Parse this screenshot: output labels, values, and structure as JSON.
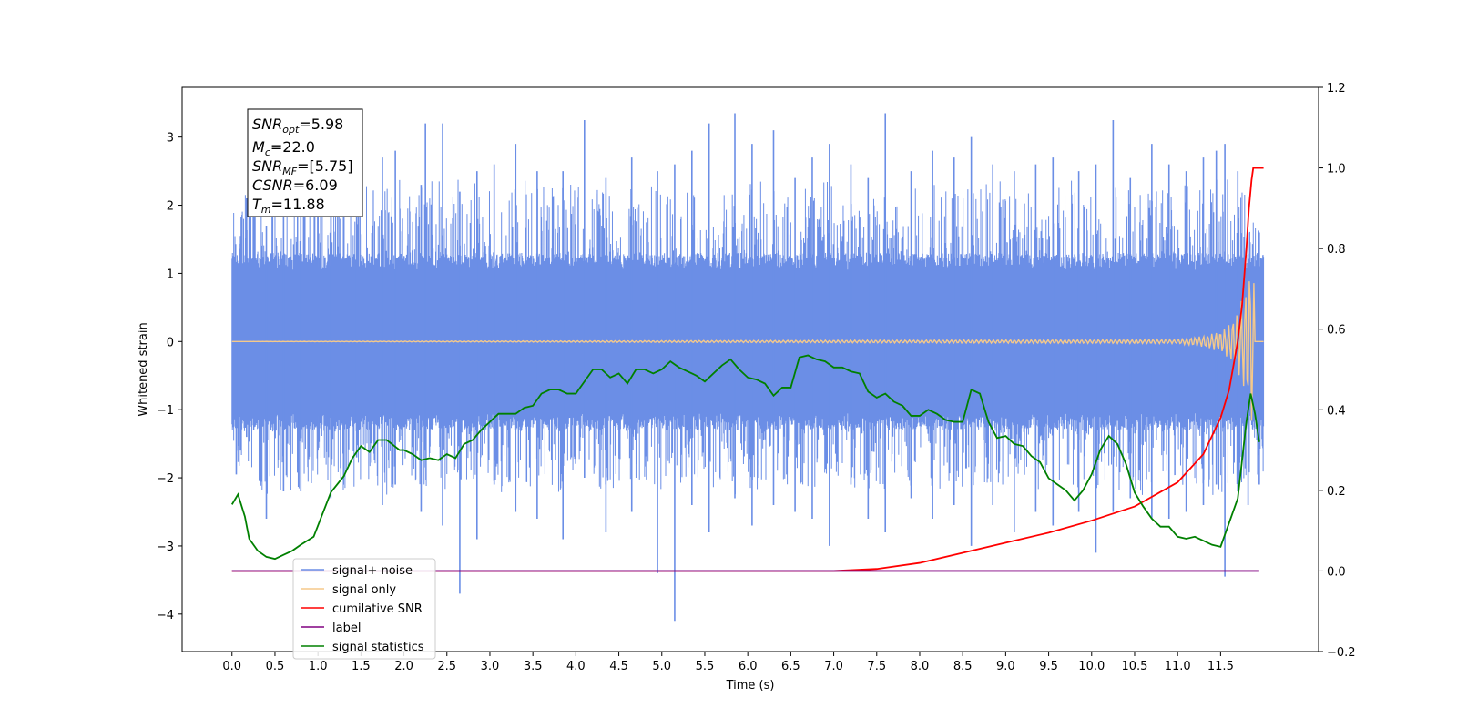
{
  "chart_data": {
    "type": "line",
    "xlabel": "Time (s)",
    "ylabel": "Whitened strain",
    "xlim": [
      -0.58,
      12.64
    ],
    "ylim": [
      -4.55,
      3.73
    ],
    "y2lim": [
      -0.2,
      1.2
    ],
    "x_ticks": [
      "0.0",
      "0.5",
      "1.0",
      "1.5",
      "2.0",
      "2.5",
      "3.0",
      "3.5",
      "4.0",
      "4.5",
      "5.0",
      "5.5",
      "6.0",
      "6.5",
      "7.0",
      "7.5",
      "8.0",
      "8.5",
      "9.0",
      "9.5",
      "10.0",
      "10.5",
      "11.0",
      "11.5"
    ],
    "y_ticks": [
      "3",
      "2",
      "1",
      "0",
      "−1",
      "−2",
      "−3",
      "−4"
    ],
    "y2_ticks": [
      "1.2",
      "1.0",
      "0.8",
      "0.6",
      "0.4",
      "0.2",
      "0.0",
      "−0.2"
    ],
    "grid": false,
    "legend_position": "lower-left",
    "annotation": {
      "snr_opt": "=5.98",
      "mc": "=22.0",
      "snr_mf": "=[5.75]",
      "csnr": "=6.09",
      "tm": "=11.88"
    },
    "noise_spikes": [
      [
        0.05,
        1.1,
        -1.95
      ],
      [
        0.1,
        1.55,
        -1.6
      ],
      [
        0.17,
        2.1,
        -1.4
      ],
      [
        0.2,
        2.7,
        -1.2
      ],
      [
        0.4,
        1.7,
        -2.6
      ],
      [
        0.6,
        2.0,
        -2.2
      ],
      [
        0.8,
        1.9,
        -2.2
      ],
      [
        1.0,
        2.4,
        -1.6
      ],
      [
        1.15,
        2.3,
        -2.3
      ],
      [
        1.45,
        2.6,
        -1.7
      ],
      [
        1.75,
        2.7,
        -2.4
      ],
      [
        1.9,
        2.8,
        -2.1
      ],
      [
        2.2,
        2.3,
        -2.5
      ],
      [
        2.25,
        3.2,
        -1.6
      ],
      [
        2.45,
        3.2,
        -2.7
      ],
      [
        2.65,
        2.2,
        -3.7
      ],
      [
        2.85,
        2.5,
        -2.9
      ],
      [
        3.05,
        2.6,
        -2.1
      ],
      [
        3.3,
        2.9,
        -2.5
      ],
      [
        3.55,
        2.5,
        -2.6
      ],
      [
        3.85,
        2.5,
        -2.9
      ],
      [
        4.1,
        3.25,
        -2.0
      ],
      [
        4.35,
        2.4,
        -2.8
      ],
      [
        4.65,
        2.7,
        -2.5
      ],
      [
        4.95,
        2.5,
        -3.4
      ],
      [
        5.15,
        2.6,
        -4.1
      ],
      [
        5.35,
        2.8,
        -2.4
      ],
      [
        5.55,
        3.2,
        -2.8
      ],
      [
        5.85,
        3.35,
        -2.3
      ],
      [
        6.05,
        2.9,
        -2.7
      ],
      [
        6.3,
        3.1,
        -2.4
      ],
      [
        6.55,
        2.4,
        -2.5
      ],
      [
        6.75,
        2.7,
        -2.6
      ],
      [
        6.95,
        2.9,
        -3.0
      ],
      [
        7.2,
        2.6,
        -2.1
      ],
      [
        7.4,
        2.4,
        -2.6
      ],
      [
        7.6,
        3.35,
        -2.8
      ],
      [
        7.9,
        2.5,
        -2.3
      ],
      [
        8.15,
        2.8,
        -2.6
      ],
      [
        8.4,
        2.7,
        -2.4
      ],
      [
        8.6,
        3.0,
        -3.0
      ],
      [
        8.85,
        2.6,
        -2.4
      ],
      [
        9.1,
        2.5,
        -2.8
      ],
      [
        9.35,
        2.6,
        -2.5
      ],
      [
        9.55,
        2.7,
        -2.7
      ],
      [
        9.85,
        2.5,
        -2.5
      ],
      [
        10.05,
        2.6,
        -3.1
      ],
      [
        10.25,
        3.25,
        -2.5
      ],
      [
        10.45,
        2.4,
        -2.3
      ],
      [
        10.7,
        2.9,
        -2.6
      ],
      [
        10.9,
        2.6,
        -2.6
      ],
      [
        11.1,
        2.5,
        -2.5
      ],
      [
        11.3,
        2.7,
        -2.4
      ],
      [
        11.45,
        2.8,
        -2.1
      ],
      [
        11.55,
        2.9,
        -3.45
      ],
      [
        11.7,
        2.5,
        -2.2
      ],
      [
        11.82,
        1.6,
        -2.4
      ],
      [
        11.95,
        1.6,
        -2.1
      ]
    ],
    "series": [
      {
        "name": "signal+ noise",
        "color": "#6b8ee6",
        "axis": "left",
        "x": [
          0.0,
          12.0
        ],
        "y": [
          0.0,
          0.0
        ]
      },
      {
        "name": "signal only",
        "color": "#f5c98a",
        "axis": "left",
        "x": [
          0.0,
          11.0,
          11.3,
          11.5,
          11.6,
          11.7,
          11.8,
          11.85,
          11.88,
          11.9,
          12.0
        ],
        "y": [
          0.0,
          0.03,
          0.08,
          0.15,
          0.25,
          0.45,
          0.8,
          1.2,
          1.3,
          0.0,
          0.0
        ]
      },
      {
        "name": "cumilative SNR",
        "color": "#ff0000",
        "axis": "right",
        "x": [
          0.0,
          7.0,
          7.5,
          8.0,
          8.5,
          9.0,
          9.5,
          10.0,
          10.5,
          11.0,
          11.3,
          11.5,
          11.6,
          11.7,
          11.75,
          11.8,
          11.83,
          11.86,
          11.88,
          12.0
        ],
        "y": [
          0.0,
          0.0,
          0.005,
          0.02,
          0.045,
          0.07,
          0.095,
          0.125,
          0.16,
          0.22,
          0.29,
          0.38,
          0.45,
          0.57,
          0.66,
          0.8,
          0.9,
          0.97,
          1.0,
          1.0
        ]
      },
      {
        "name": "label",
        "color": "#800080",
        "axis": "right",
        "x": [
          0.0,
          11.95
        ],
        "y": [
          0.0,
          0.0
        ]
      },
      {
        "name": "signal statistics",
        "color": "#008000",
        "axis": "right",
        "x": [
          0.0,
          0.07,
          0.15,
          0.2,
          0.3,
          0.4,
          0.5,
          0.6,
          0.7,
          0.8,
          0.95,
          1.05,
          1.15,
          1.3,
          1.4,
          1.5,
          1.6,
          1.7,
          1.8,
          1.95,
          2.0,
          2.1,
          2.2,
          2.3,
          2.4,
          2.5,
          2.6,
          2.7,
          2.8,
          2.9,
          3.0,
          3.1,
          3.2,
          3.3,
          3.4,
          3.5,
          3.6,
          3.7,
          3.8,
          3.9,
          4.0,
          4.1,
          4.2,
          4.3,
          4.4,
          4.5,
          4.6,
          4.7,
          4.8,
          4.9,
          5.0,
          5.1,
          5.2,
          5.3,
          5.4,
          5.5,
          5.6,
          5.7,
          5.8,
          5.9,
          6.0,
          6.1,
          6.2,
          6.3,
          6.4,
          6.5,
          6.6,
          6.7,
          6.8,
          6.9,
          7.0,
          7.1,
          7.2,
          7.3,
          7.4,
          7.5,
          7.6,
          7.7,
          7.8,
          7.9,
          8.0,
          8.1,
          8.2,
          8.3,
          8.4,
          8.5,
          8.6,
          8.7,
          8.8,
          8.9,
          9.0,
          9.1,
          9.2,
          9.3,
          9.4,
          9.5,
          9.6,
          9.7,
          9.8,
          9.9,
          10.0,
          10.1,
          10.2,
          10.3,
          10.4,
          10.5,
          10.6,
          10.7,
          10.8,
          10.9,
          11.0,
          11.1,
          11.2,
          11.3,
          11.4,
          11.5,
          11.6,
          11.7,
          11.8,
          11.85,
          11.9,
          11.95
        ],
        "y": [
          0.165,
          0.19,
          0.135,
          0.08,
          0.05,
          0.035,
          0.03,
          0.04,
          0.05,
          0.065,
          0.085,
          0.14,
          0.195,
          0.235,
          0.28,
          0.31,
          0.295,
          0.325,
          0.325,
          0.3,
          0.3,
          0.29,
          0.275,
          0.28,
          0.275,
          0.29,
          0.28,
          0.315,
          0.325,
          0.35,
          0.37,
          0.39,
          0.39,
          0.39,
          0.405,
          0.41,
          0.44,
          0.45,
          0.45,
          0.44,
          0.44,
          0.47,
          0.5,
          0.5,
          0.48,
          0.49,
          0.465,
          0.5,
          0.5,
          0.49,
          0.5,
          0.52,
          0.505,
          0.495,
          0.485,
          0.47,
          0.49,
          0.51,
          0.525,
          0.5,
          0.48,
          0.475,
          0.465,
          0.435,
          0.455,
          0.455,
          0.53,
          0.535,
          0.525,
          0.52,
          0.505,
          0.505,
          0.495,
          0.49,
          0.445,
          0.43,
          0.44,
          0.42,
          0.41,
          0.385,
          0.385,
          0.4,
          0.39,
          0.375,
          0.37,
          0.37,
          0.45,
          0.44,
          0.37,
          0.33,
          0.335,
          0.315,
          0.31,
          0.285,
          0.27,
          0.23,
          0.215,
          0.2,
          0.175,
          0.2,
          0.24,
          0.3,
          0.335,
          0.315,
          0.265,
          0.195,
          0.16,
          0.13,
          0.11,
          0.11,
          0.085,
          0.08,
          0.085,
          0.075,
          0.065,
          0.06,
          0.12,
          0.18,
          0.37,
          0.44,
          0.39,
          0.32
        ]
      }
    ]
  }
}
